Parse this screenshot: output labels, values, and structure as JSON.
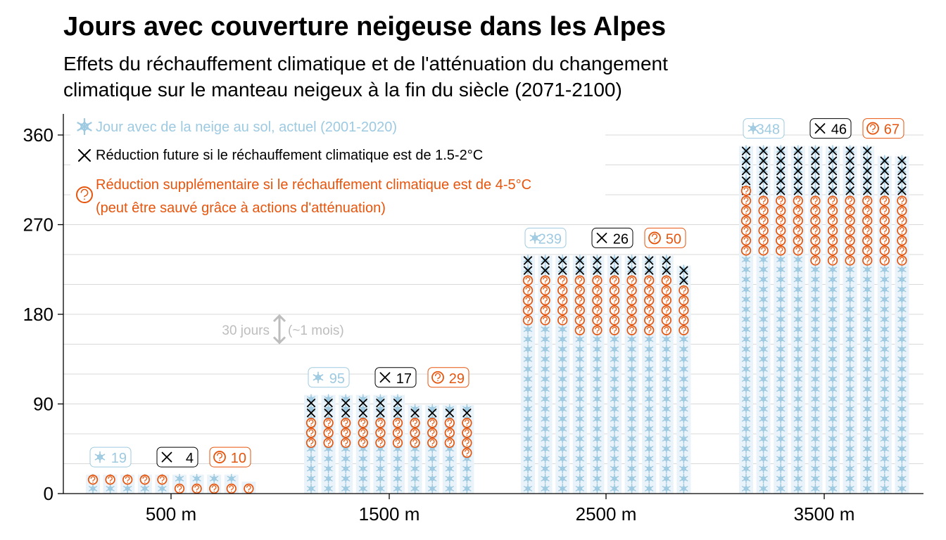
{
  "colors": {
    "snow": "#9ecae1",
    "cross": "#000000",
    "question": "#e6550d",
    "grid": "#d9d9d9",
    "axis": "#000000",
    "annotation": "#bdbdbd"
  },
  "icons": {
    "snow": "snowflake-icon",
    "cross": "cross-icon",
    "question": "circled-question-icon"
  },
  "chart_data": {
    "type": "waffle-bar",
    "title": "Jours avec couverture neigeuse dans les Alpes",
    "subtitle_lines": [
      "Effets du réchauffement climatique et de l'atténuation du changement",
      "climatique sur le manteau neigeux à la fin du siècle (2071-2100)"
    ],
    "y_ticks": [
      0,
      90,
      180,
      270,
      360
    ],
    "ylim": [
      0,
      380
    ],
    "grid": true,
    "days_per_icon": 10,
    "legend": {
      "position": "top-left",
      "snow": "Jour avec de la neige au sol, actuel (2001-2020)",
      "cross": "Réduction future si le réchauffement climatique est de 1.5-2°C",
      "question_line1": "Réduction supplémentaire si le réchauffement climatique est de 4-5°C",
      "question_line2": "(peut être sauvé grâce à actions d'atténuation)"
    },
    "annotation": {
      "left": "30 jours",
      "right": "(~1 mois)"
    },
    "groups": [
      {
        "label": "500 m",
        "badges": {
          "snow": "19",
          "cross": "4",
          "question": "10"
        },
        "totals": [
          19,
          19,
          19,
          19,
          19,
          19,
          19,
          19,
          19,
          12
        ],
        "cross_start": [
          19,
          19,
          19,
          19,
          19,
          19,
          19,
          19,
          19,
          12
        ],
        "question_start": [
          19,
          19,
          19,
          19,
          19,
          14,
          14,
          14,
          14,
          12
        ],
        "question_end": [
          9,
          9,
          9,
          9,
          9,
          0,
          0,
          0,
          0,
          0
        ]
      },
      {
        "label": "1500 m",
        "badges": {
          "snow": "95",
          "cross": "17",
          "question": "29"
        },
        "totals": [
          99,
          99,
          99,
          99,
          99,
          99,
          89,
          89,
          89,
          89
        ],
        "cross_start": [
          76,
          76,
          76,
          76,
          76,
          76,
          76,
          76,
          76,
          76
        ],
        "question_start": [
          76,
          76,
          76,
          76,
          76,
          76,
          76,
          76,
          76,
          76
        ],
        "question_end": [
          46,
          46,
          46,
          46,
          46,
          46,
          46,
          46,
          46,
          36
        ]
      },
      {
        "label": "2500 m",
        "badges": {
          "snow": "239",
          "cross": "26",
          "question": "50"
        },
        "totals": [
          239,
          239,
          239,
          239,
          239,
          239,
          239,
          239,
          239,
          229
        ],
        "cross_start": [
          219,
          219,
          219,
          219,
          219,
          219,
          219,
          219,
          219,
          209
        ],
        "question_start": [
          219,
          219,
          219,
          219,
          219,
          219,
          219,
          219,
          219,
          209
        ],
        "question_end": [
          169,
          169,
          169,
          159,
          159,
          159,
          159,
          159,
          159,
          159
        ]
      },
      {
        "label": "3500 m",
        "badges": {
          "snow": "348",
          "cross": "46",
          "question": "67"
        },
        "totals": [
          349,
          349,
          349,
          349,
          349,
          349,
          349,
          349,
          339,
          339
        ],
        "cross_start": [
          299,
          299,
          299,
          299,
          299,
          299,
          299,
          299,
          299,
          299
        ],
        "question_start": [
          309,
          299,
          299,
          299,
          299,
          299,
          299,
          299,
          299,
          299
        ],
        "question_end": [
          239,
          239,
          239,
          239,
          229,
          229,
          229,
          229,
          229,
          229
        ]
      }
    ]
  }
}
